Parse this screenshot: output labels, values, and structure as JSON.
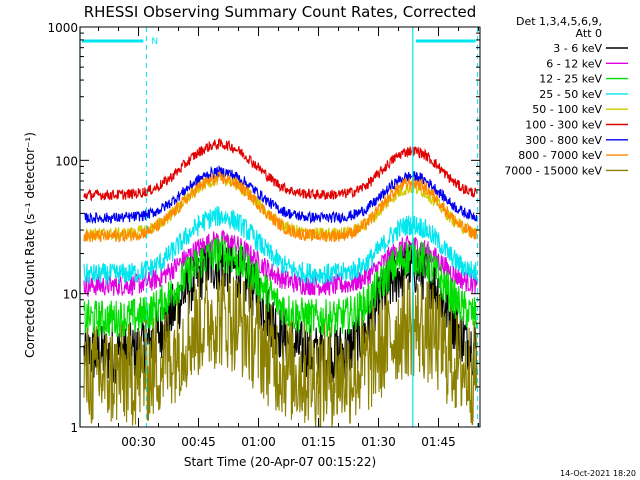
{
  "chart_data": {
    "type": "line",
    "title": "RHESSI Observing Summary Count Rates, Corrected",
    "ylabel": "Corrected Count Rate (s⁻¹ detector⁻¹)",
    "xlabel": "Start Time (20-Apr-07 00:15:22)",
    "y_scale": "log",
    "ylim": [
      1,
      1000
    ],
    "xlim_minutes": [
      0,
      100
    ],
    "y_ticks": [
      {
        "value": 1,
        "label": "1"
      },
      {
        "value": 10,
        "label": "10"
      },
      {
        "value": 100,
        "label": "100"
      },
      {
        "value": 1000,
        "label": "1000"
      }
    ],
    "x_ticks": [
      {
        "minute": 14.63,
        "label": "00:30"
      },
      {
        "minute": 29.63,
        "label": "00:45"
      },
      {
        "minute": 44.63,
        "label": "01:00"
      },
      {
        "minute": 59.63,
        "label": "01:15"
      },
      {
        "minute": 74.63,
        "label": "01:30"
      },
      {
        "minute": 89.63,
        "label": "01:45"
      }
    ],
    "legend_header": [
      "Det 1,3,4,5,6,9,",
      "Att 0"
    ],
    "legend_position": "top-right",
    "peaks_minutes": [
      35,
      83
    ],
    "series": [
      {
        "name": "3 - 6 keV",
        "color": "#000000",
        "base": 3.5,
        "peak1": 17,
        "peak2": 16,
        "noise": 0.14
      },
      {
        "name": "6 - 12 keV",
        "color": "#e000e0",
        "base": 11.5,
        "peak1": 25,
        "peak2": 23,
        "noise": 0.05
      },
      {
        "name": "12 - 25 keV",
        "color": "#00dd00",
        "base": 6.5,
        "peak1": 20,
        "peak2": 19,
        "noise": 0.09
      },
      {
        "name": "25 - 50 keV",
        "color": "#00e5ee",
        "base": 14,
        "peak1": 38,
        "peak2": 33,
        "noise": 0.05
      },
      {
        "name": "50 - 100 keV",
        "color": "#d4c800",
        "base": 28,
        "peak1": 72,
        "peak2": 62,
        "noise": 0.03
      },
      {
        "name": "100 - 300 keV",
        "color": "#e00000",
        "base": 55,
        "peak1": 132,
        "peak2": 118,
        "noise": 0.025
      },
      {
        "name": "300 - 800 keV",
        "color": "#0000ee",
        "base": 37,
        "peak1": 82,
        "peak2": 76,
        "noise": 0.025
      },
      {
        "name": "800 - 7000 keV",
        "color": "#ff8800",
        "base": 27,
        "peak1": 73,
        "peak2": 68,
        "noise": 0.03
      },
      {
        "name": "7000 - 15000 keV",
        "color": "#8b8000",
        "base": 2.4,
        "peak1": 6.8,
        "peak2": 5.8,
        "noise": 0.25
      }
    ],
    "annotations": {
      "saa_flag": "N",
      "timestamp": "14-Oct-2021 18:20"
    }
  }
}
